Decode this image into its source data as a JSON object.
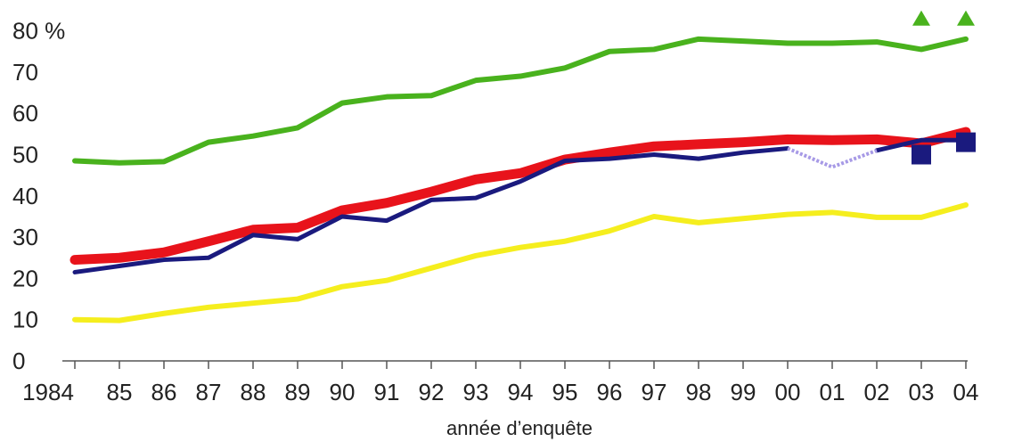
{
  "chart_data": {
    "type": "line",
    "title": "",
    "xlabel": "année d’enquête",
    "ylabel": "",
    "y_unit": "%",
    "ylim": [
      0,
      80
    ],
    "y_ticks": [
      0,
      10,
      20,
      30,
      40,
      50,
      60,
      70,
      80
    ],
    "y_tick_labels": [
      "0",
      "10",
      "20",
      "30",
      "40",
      "50",
      "60",
      "70",
      "80 %"
    ],
    "categories": [
      "1984",
      "85",
      "86",
      "87",
      "88",
      "89",
      "90",
      "91",
      "92",
      "93",
      "94",
      "95",
      "96",
      "97",
      "98",
      "99",
      "00",
      "01",
      "02",
      "03",
      "04"
    ],
    "grid": false,
    "legend": "none",
    "series": [
      {
        "color": "#49b21d",
        "width": 6,
        "values": [
          48.5,
          48,
          48.3,
          53,
          54.5,
          56.5,
          62.5,
          64,
          64.3,
          68,
          69,
          71,
          75,
          75.5,
          78,
          77.5,
          77,
          77,
          77.3,
          75.5,
          78
        ]
      },
      {
        "color": "#f5ee1e",
        "width": 6,
        "values": [
          10,
          9.8,
          11.5,
          13,
          14,
          15,
          18,
          19.5,
          22.5,
          25.5,
          27.5,
          29,
          31.5,
          35,
          33.5,
          34.5,
          35.5,
          36,
          34.8,
          34.8,
          37.8
        ]
      },
      {
        "color": "#e8131b",
        "width": 11,
        "values": [
          24.5,
          25,
          26.3,
          29,
          31.8,
          32.3,
          36.5,
          38.3,
          41,
          44,
          45.5,
          48.8,
          50.5,
          52,
          52.5,
          53,
          53.7,
          53.5,
          53.7,
          52.7,
          55.5
        ]
      },
      {
        "color": "#1a1a7e",
        "width": 5,
        "values": [
          21.5,
          23,
          24.5,
          25,
          30.5,
          29.5,
          35,
          34,
          39,
          39.5,
          43.5,
          48.5,
          49,
          50,
          49,
          50.5,
          51.5,
          null,
          51,
          53.5,
          53.5
        ],
        "dotted_segment": {
          "from": "00",
          "via": "01",
          "to": "02",
          "values": [
            51.5,
            47,
            51
          ],
          "color": "#a79ae6"
        }
      }
    ],
    "markers": [
      {
        "shape": "triangle",
        "color": "#49b21d",
        "x": "03",
        "y": 83
      },
      {
        "shape": "triangle",
        "color": "#49b21d",
        "x": "04",
        "y": 83
      },
      {
        "shape": "square",
        "color": "#1a1a7e",
        "x": "03",
        "y": 50
      },
      {
        "shape": "square",
        "color": "#1a1a7e",
        "x": "04",
        "y": 53
      }
    ]
  }
}
